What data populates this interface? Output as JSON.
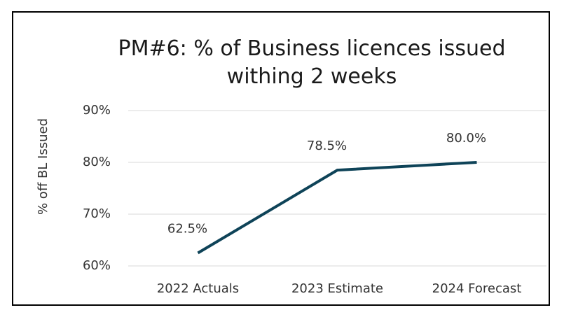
{
  "chart_data": {
    "type": "line",
    "title": "PM#6: % of Business licences issued withing 2 weeks",
    "y_label": "% off BL Issued",
    "categories": [
      "2022 Actuals",
      "2023 Estimate",
      "2024 Forecast"
    ],
    "series": [
      {
        "name": "% off BL Issued",
        "color": "#0e4358",
        "values": [
          62.5,
          78.5,
          80.0
        ],
        "value_labels": [
          "62.5%",
          "78.5%",
          "80.0%"
        ]
      }
    ],
    "ylim": [
      60,
      90
    ],
    "yticks": [
      {
        "value": 60,
        "label": "60%"
      },
      {
        "value": 70,
        "label": "70%"
      },
      {
        "value": 80,
        "label": "80%"
      },
      {
        "value": 90,
        "label": "90%"
      }
    ],
    "grid": true
  }
}
